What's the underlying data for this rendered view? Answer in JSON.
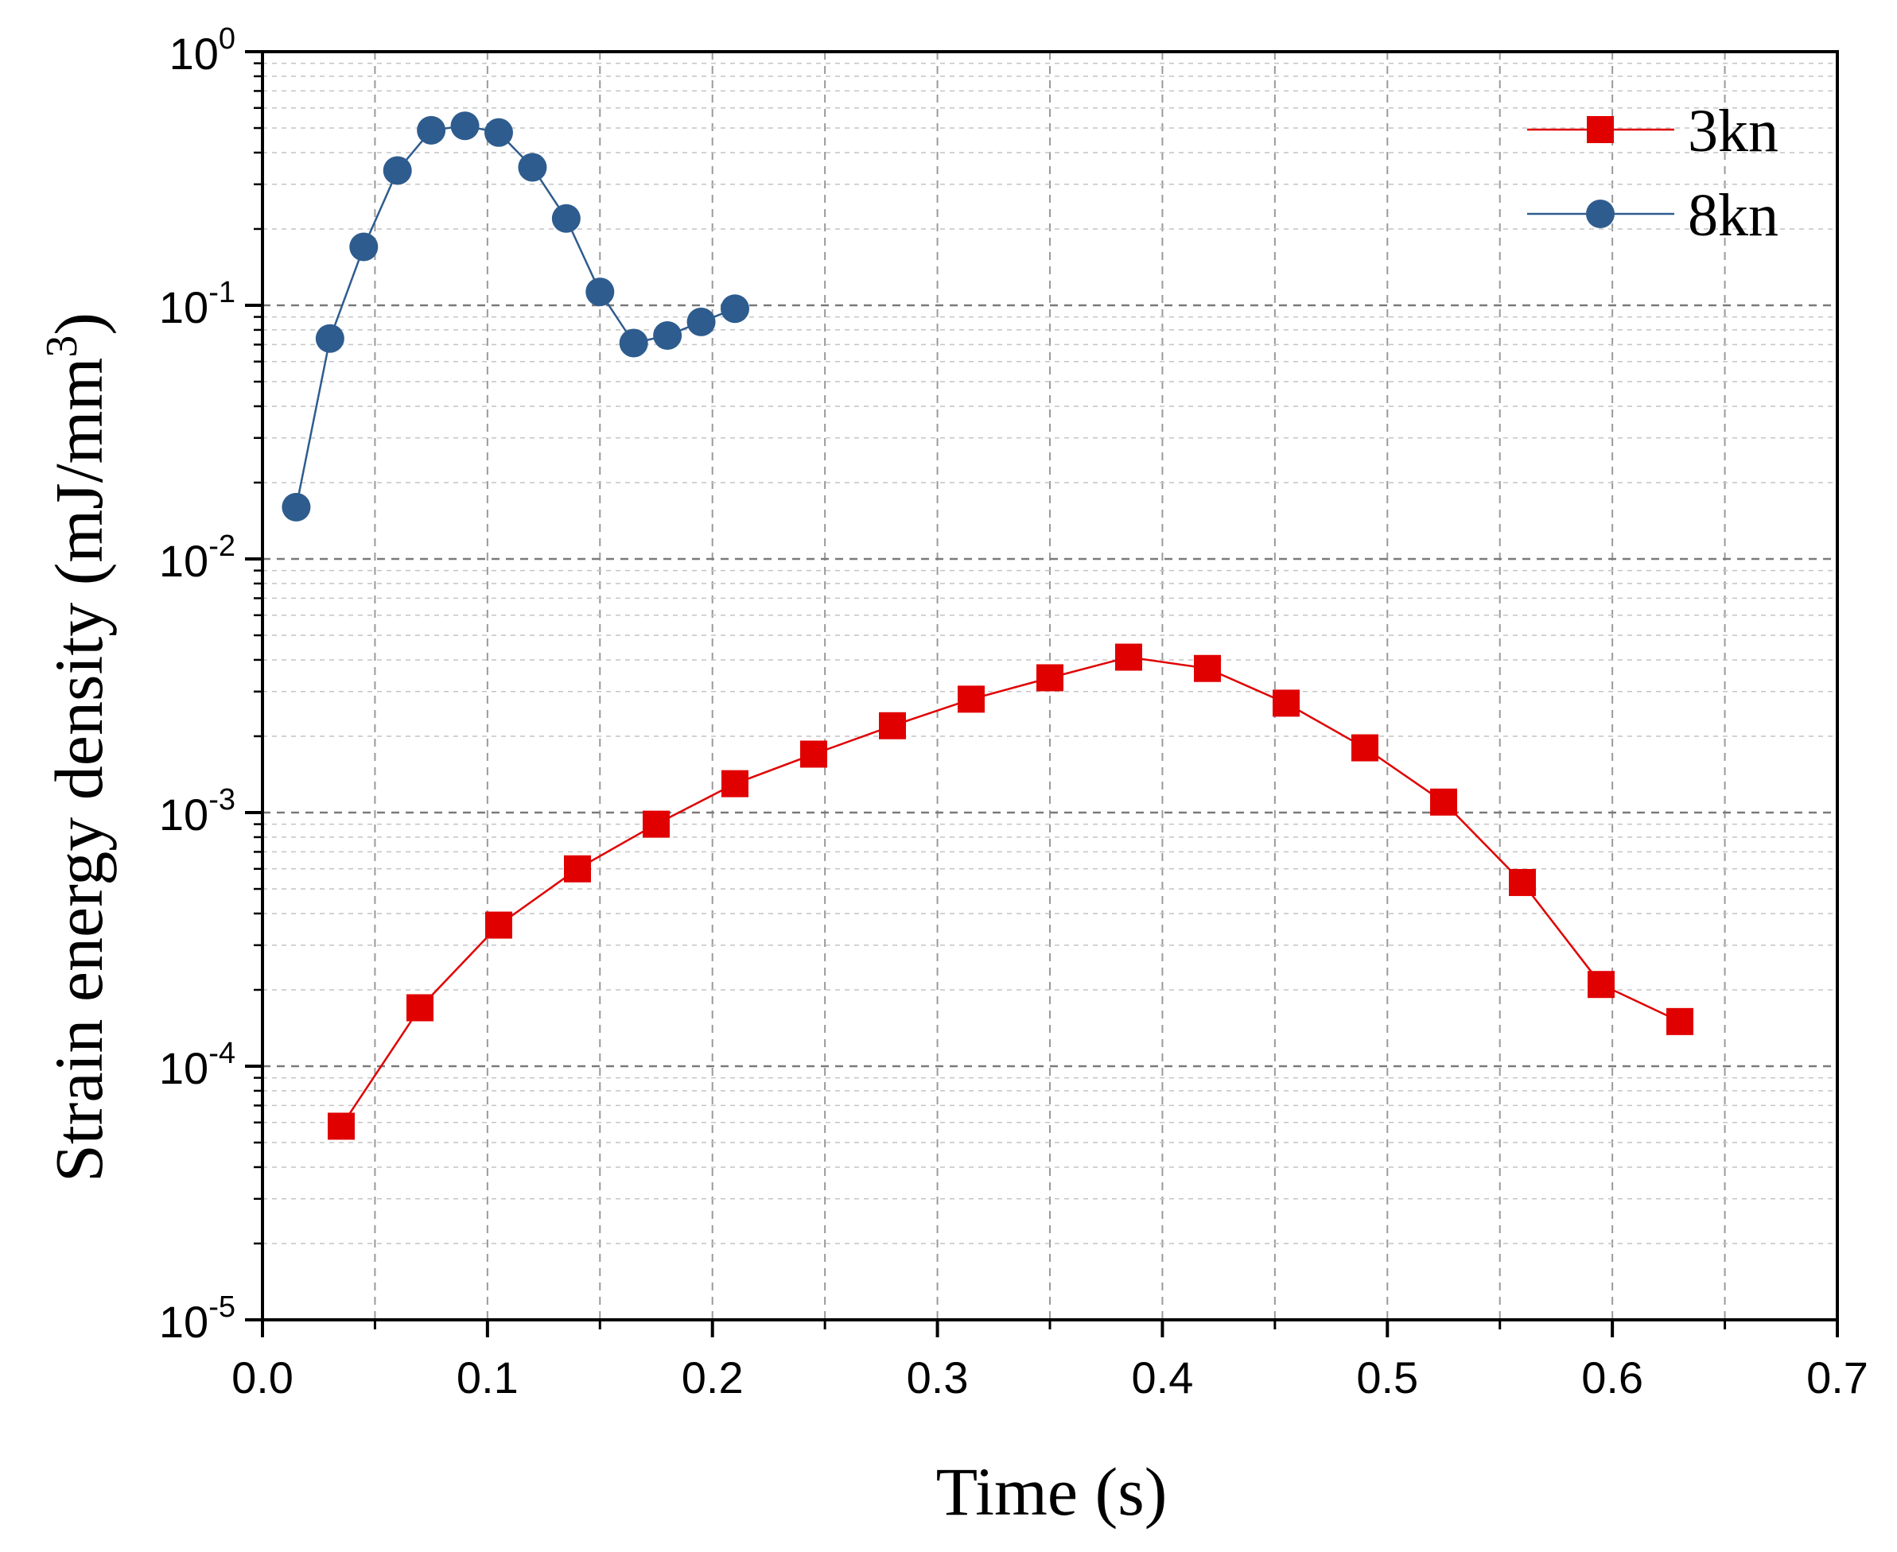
{
  "chart_data": {
    "type": "line",
    "title": "",
    "xlabel": "Time (s)",
    "ylabel_main": "Strain energy density (mJ/mm",
    "ylabel_sup": "3",
    "ylabel_close": ")",
    "xlim": [
      0.0,
      0.7
    ],
    "ylim_exp": [
      -5,
      0
    ],
    "yscale": "log",
    "grid": true,
    "legend_position": "top-right",
    "x_ticks": [
      0.0,
      0.1,
      0.2,
      0.3,
      0.4,
      0.5,
      0.6,
      0.7
    ],
    "x_tick_labels": [
      "0.0",
      "0.1",
      "0.2",
      "0.3",
      "0.4",
      "0.5",
      "0.6",
      "0.7"
    ],
    "y_ticks": [
      {
        "base": "10",
        "exp": "0",
        "value": 1
      },
      {
        "base": "10",
        "exp": "-1",
        "value": 0.1
      },
      {
        "base": "10",
        "exp": "-2",
        "value": 0.01
      },
      {
        "base": "10",
        "exp": "-3",
        "value": 0.001
      },
      {
        "base": "10",
        "exp": "-4",
        "value": 0.0001
      },
      {
        "base": "10",
        "exp": "-5",
        "value": 1e-05
      }
    ],
    "series": [
      {
        "name": "3kn",
        "color": "#e00000",
        "marker": "square",
        "x": [
          0.035,
          0.07,
          0.105,
          0.14,
          0.175,
          0.21,
          0.245,
          0.28,
          0.315,
          0.35,
          0.385,
          0.42,
          0.455,
          0.49,
          0.525,
          0.56,
          0.595,
          0.63
        ],
        "y": [
          5.8e-05,
          0.00017,
          0.00036,
          0.0006,
          0.0009,
          0.0013,
          0.0017,
          0.0022,
          0.0028,
          0.0034,
          0.0041,
          0.0037,
          0.0027,
          0.0018,
          0.0011,
          0.00053,
          0.00021,
          0.00015
        ]
      },
      {
        "name": "8kn",
        "color": "#2e5c8e",
        "marker": "circle",
        "x": [
          0.015,
          0.03,
          0.045,
          0.06,
          0.075,
          0.09,
          0.105,
          0.12,
          0.135,
          0.15,
          0.165,
          0.18,
          0.195,
          0.21
        ],
        "y": [
          0.016,
          0.074,
          0.17,
          0.34,
          0.49,
          0.51,
          0.48,
          0.35,
          0.22,
          0.113,
          0.071,
          0.076,
          0.086,
          0.097
        ]
      }
    ]
  }
}
